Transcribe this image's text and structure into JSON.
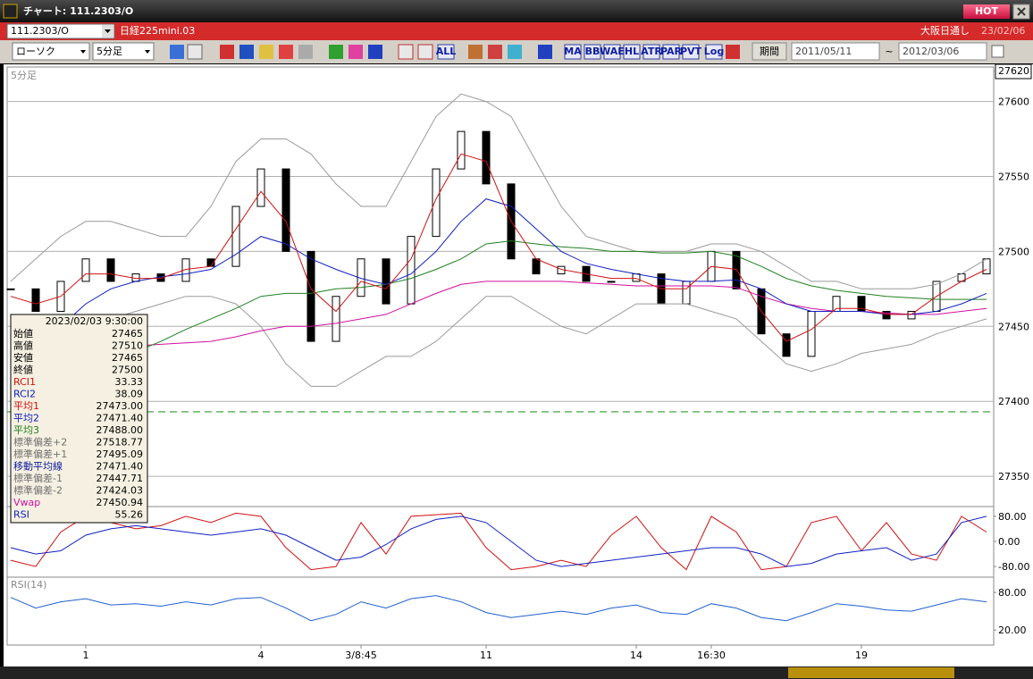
{
  "window": {
    "title": "チャート: 111.2303/O",
    "hot": "HOT",
    "code": "111.2303/O",
    "instrument": "日経225mini.03",
    "session": "大阪日通し",
    "date": "23/02/06"
  },
  "toolbar": {
    "chart_kind": "ローソク",
    "interval": "5分足",
    "indicator_buttons": [
      "ALL",
      "MA",
      "BB",
      "WAE",
      "HL",
      "ATR",
      "PAR",
      "PVT",
      "Log"
    ],
    "period_button": "期間",
    "date_from": "2011/05/11",
    "separator": "~",
    "date_to": "2012/03/06"
  },
  "info_box": {
    "datetime": "2023/02/03 9:30:00",
    "rows": [
      {
        "label": "始値",
        "value": "27465",
        "color": "#000000"
      },
      {
        "label": "高値",
        "value": "27510",
        "color": "#000000"
      },
      {
        "label": "安値",
        "value": "27465",
        "color": "#000000"
      },
      {
        "label": "終値",
        "value": "27500",
        "color": "#000000"
      },
      {
        "label": "RCI1",
        "value": "33.33",
        "color": "#d01010"
      },
      {
        "label": "RCI2",
        "value": "38.09",
        "color": "#1020c0"
      },
      {
        "label": "平均1",
        "value": "27473.00",
        "color": "#d01010"
      },
      {
        "label": "平均2",
        "value": "27471.40",
        "color": "#1020c0"
      },
      {
        "label": "平均3",
        "value": "27488.00",
        "color": "#208020"
      },
      {
        "label": "標準偏差+2",
        "value": "27518.77",
        "color": "#707070"
      },
      {
        "label": "標準偏差+1",
        "value": "27495.09",
        "color": "#707070"
      },
      {
        "label": "移動平均線",
        "value": "27471.40",
        "color": "#1020a0"
      },
      {
        "label": "標準偏差-1",
        "value": "27447.71",
        "color": "#707070"
      },
      {
        "label": "標準偏差-2",
        "value": "27424.03",
        "color": "#707070"
      },
      {
        "label": "Vwap",
        "value": "27450.94",
        "color": "#d010a0"
      },
      {
        "label": "RSI",
        "value": "55.26",
        "color": "#1020c0"
      }
    ]
  },
  "chart_data": [
    {
      "type": "candlestick",
      "title": "5分足",
      "categories": [
        null,
        null,
        null,
        "1",
        null,
        null,
        null,
        null,
        null,
        null,
        "4",
        null,
        null,
        null,
        "3/8:45",
        null,
        null,
        null,
        null,
        "11",
        null,
        null,
        null,
        null,
        null,
        "14",
        null,
        null,
        "16:30",
        null,
        null,
        null,
        null,
        null,
        "19",
        null,
        null,
        null,
        null,
        null
      ],
      "close": [
        27475,
        27460,
        27480,
        27495,
        27480,
        27485,
        27480,
        27495,
        27490,
        27530,
        27555,
        27500,
        27440,
        27470,
        27495,
        27465,
        27510,
        27555,
        27580,
        27545,
        27495,
        27485,
        27490,
        27480,
        27480,
        27485,
        27465,
        27480,
        27500,
        27475,
        27445,
        27430,
        27460,
        27470,
        27460,
        27455,
        27460,
        27480,
        27485,
        27495
      ],
      "series": [
        {
          "color": "#9a9a9a",
          "values": [
            27480,
            27495,
            27510,
            27520,
            27520,
            27515,
            27510,
            27510,
            27530,
            27560,
            27575,
            27575,
            27565,
            27545,
            27530,
            27530,
            27560,
            27590,
            27605,
            27600,
            27590,
            27560,
            27530,
            27510,
            27505,
            27500,
            27500,
            27500,
            27505,
            27505,
            27500,
            27490,
            27480,
            27480,
            27475,
            27475,
            27475,
            27478,
            27485,
            27495
          ]
        },
        {
          "color": "#9a9a9a",
          "values": [
            27430,
            27420,
            27418,
            27440,
            27455,
            27460,
            27465,
            27470,
            27470,
            27465,
            27450,
            27425,
            27410,
            27410,
            27420,
            27430,
            27430,
            27440,
            27455,
            27470,
            27470,
            27460,
            27450,
            27445,
            27455,
            27465,
            27465,
            27465,
            27460,
            27455,
            27440,
            27425,
            27420,
            27425,
            27432,
            27435,
            27438,
            27445,
            27450,
            27455
          ]
        },
        {
          "color": "#d010a0",
          "values": [
            27420,
            27425,
            27430,
            27433,
            27435,
            27437,
            27438,
            27439,
            27440,
            27443,
            27447,
            27450,
            27450,
            27452,
            27455,
            27458,
            27465,
            27472,
            27478,
            27480,
            27480,
            27480,
            27480,
            27479,
            27478,
            27477,
            27477,
            27477,
            27477,
            27476,
            27470,
            27465,
            27462,
            27460,
            27460,
            27459,
            27458,
            27458,
            27460,
            27462
          ]
        },
        {
          "color": "#208020",
          "values": [
            27395,
            27400,
            27408,
            27415,
            27425,
            27433,
            27440,
            27448,
            27455,
            27462,
            27470,
            27472,
            27472,
            27475,
            27476,
            27478,
            27482,
            27488,
            27495,
            27505,
            27507,
            27505,
            27503,
            27502,
            27500,
            27500,
            27499,
            27499,
            27500,
            27497,
            27490,
            27482,
            27477,
            27474,
            27472,
            27470,
            27469,
            27468,
            27468,
            27468
          ]
        },
        {
          "color": "#1020c0",
          "values": [
            27430,
            27440,
            27450,
            27465,
            27475,
            27480,
            27483,
            27485,
            27488,
            27498,
            27510,
            27505,
            27495,
            27488,
            27482,
            27478,
            27485,
            27500,
            27520,
            27535,
            27530,
            27515,
            27500,
            27492,
            27488,
            27485,
            27482,
            27480,
            27480,
            27481,
            27475,
            27465,
            27460,
            27460,
            27460,
            27458,
            27458,
            27460,
            27465,
            27472
          ]
        },
        {
          "color": "#d01010",
          "values": [
            27470,
            27465,
            27470,
            27485,
            27485,
            27482,
            27482,
            27488,
            27490,
            27515,
            27540,
            27520,
            27475,
            27460,
            27480,
            27475,
            27495,
            27535,
            27565,
            27560,
            27520,
            27495,
            27488,
            27485,
            27482,
            27482,
            27475,
            27475,
            27490,
            27488,
            27460,
            27440,
            27448,
            27462,
            27462,
            27458,
            27458,
            27470,
            27480,
            27488
          ]
        }
      ],
      "reference_line": {
        "value": 27393,
        "color": "#2e9a2e"
      },
      "ylim": [
        27331,
        27620
      ],
      "yticks": [
        27350,
        27400,
        27450,
        27500,
        27550,
        27600,
        27620
      ],
      "grid": true
    },
    {
      "type": "line",
      "series": [
        {
          "color": "#d01010",
          "values": [
            -60,
            -80,
            30,
            80,
            60,
            40,
            50,
            80,
            60,
            90,
            80,
            -20,
            -90,
            -80,
            60,
            -40,
            80,
            85,
            90,
            -20,
            -90,
            -80,
            -60,
            -80,
            20,
            80,
            -20,
            -90,
            80,
            30,
            -90,
            -80,
            60,
            80,
            -30,
            60,
            -40,
            -60,
            80,
            30
          ]
        },
        {
          "color": "#1020c0",
          "values": [
            -20,
            -40,
            -30,
            20,
            40,
            50,
            40,
            30,
            20,
            30,
            40,
            20,
            -20,
            -60,
            -50,
            -10,
            40,
            70,
            80,
            60,
            0,
            -60,
            -80,
            -70,
            -60,
            -50,
            -40,
            -30,
            -20,
            -20,
            -40,
            -80,
            -70,
            -40,
            -30,
            -20,
            -60,
            -40,
            60,
            80
          ]
        }
      ],
      "ylim": [
        -111,
        111
      ],
      "yticks": [
        {
          "value": 80,
          "label": "80.00"
        },
        {
          "value": 0,
          "label": "0.00"
        },
        {
          "value": -80,
          "label": "-80.00"
        }
      ]
    },
    {
      "type": "line",
      "title": "RSI(14)",
      "series": [
        {
          "color": "#2060d0",
          "values": [
            72,
            55,
            65,
            70,
            60,
            62,
            58,
            65,
            60,
            70,
            72,
            55,
            35,
            45,
            65,
            55,
            70,
            75,
            65,
            48,
            40,
            45,
            50,
            45,
            55,
            60,
            48,
            45,
            62,
            55,
            40,
            35,
            48,
            62,
            58,
            52,
            50,
            60,
            70,
            65
          ]
        }
      ],
      "ylim": [
        -4,
        103
      ],
      "yticks": [
        {
          "value": 80,
          "label": "80.00"
        },
        {
          "value": 20,
          "label": "20.00"
        }
      ]
    }
  ]
}
